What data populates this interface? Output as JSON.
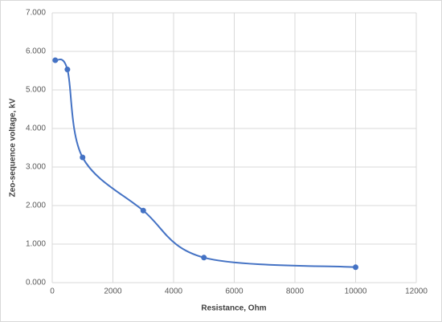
{
  "chart_data": {
    "type": "line",
    "smooth": true,
    "markers": true,
    "color": "#4472c4",
    "grid": true,
    "x_label": "Resistance, Ohm",
    "y_label": "Zeo-sequence voltage, kV",
    "x": [
      100,
      500,
      1000,
      3000,
      5000,
      10000
    ],
    "values": [
      5.77,
      5.53,
      3.25,
      1.87,
      0.65,
      0.4
    ],
    "xlim": [
      0,
      12000
    ],
    "xticks": [
      0,
      2000,
      4000,
      6000,
      8000,
      10000,
      12000
    ],
    "ylim": [
      0,
      7
    ],
    "yticks": [
      {
        "value": 0,
        "label": "0.000"
      },
      {
        "value": 1,
        "label": "1.000"
      },
      {
        "value": 2,
        "label": "2.000"
      },
      {
        "value": 3,
        "label": "3.000"
      },
      {
        "value": 4,
        "label": "4.000"
      },
      {
        "value": 5,
        "label": "5.000"
      },
      {
        "value": 6,
        "label": "6.000"
      },
      {
        "value": 7,
        "label": "7.000"
      }
    ]
  }
}
